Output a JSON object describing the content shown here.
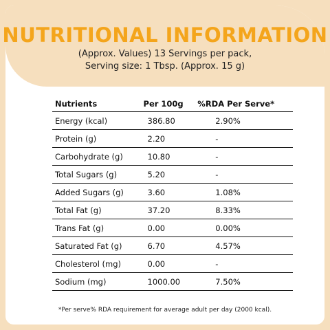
{
  "header": {
    "title": "NUTRITIONAL INFORMATION",
    "subtitle_lines": [
      "(Approx. Values) 13 Servings per pack,",
      "Serving size: 1 Tbsp. (Approx. 15 g)"
    ]
  },
  "table": {
    "columns": [
      "Nutrients",
      "Per 100g",
      "%RDA Per Serve*"
    ],
    "rows": [
      [
        "Energy (kcal)",
        "386.80",
        "2.90%"
      ],
      [
        "Protein (g)",
        "2.20",
        "-"
      ],
      [
        "Carbohydrate (g)",
        "10.80",
        "-"
      ],
      [
        "Total Sugars (g)",
        "5.20",
        "-"
      ],
      [
        "Added Sugars (g)",
        "3.60",
        "1.08%"
      ],
      [
        "Total Fat (g)",
        "37.20",
        "8.33%"
      ],
      [
        "Trans Fat (g)",
        "0.00",
        "0.00%"
      ],
      [
        "Saturated Fat (g)",
        "6.70",
        "4.57%"
      ],
      [
        "Cholesterol (mg)",
        "0.00",
        "-"
      ],
      [
        "Sodium (mg)",
        "1000.00",
        "7.50%"
      ]
    ]
  },
  "footnote": "*Per serve% RDA requirement for average adult per day (2000 kcal)."
}
